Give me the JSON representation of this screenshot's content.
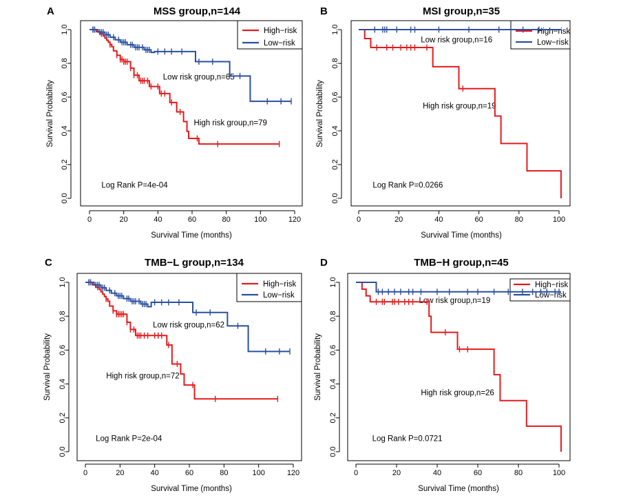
{
  "chart_data": [
    {
      "type": "line",
      "panel": "A",
      "title": "MSS group,n=144",
      "xlabel": "Survival Time (months)",
      "ylabel": "Survival Probability",
      "xlim": [
        0,
        120
      ],
      "ylim": [
        0,
        1
      ],
      "xticks": [
        "0",
        "20",
        "40",
        "60",
        "80",
        "100",
        "120"
      ],
      "yticks": [
        "0.0",
        "0.2",
        "0.4",
        "0.6",
        "0.8",
        "1.0"
      ],
      "legend": {
        "position": "top-right",
        "entries": [
          {
            "label": "High−risk",
            "color": "#E41A1C"
          },
          {
            "label": "Low−risk",
            "color": "#2A4FA0"
          }
        ]
      },
      "annotations": [
        {
          "text": "Low risk group,n=65",
          "x": 43,
          "y": 0.72
        },
        {
          "text": "High risk group,n=79",
          "x": 61,
          "y": 0.45
        },
        {
          "text": "Log Rank P=4e-04",
          "x": 7,
          "y": 0.08
        }
      ],
      "series": [
        {
          "name": "High-risk",
          "color": "#E41A1C",
          "x": [
            0,
            4,
            6,
            8,
            9,
            10,
            11,
            12,
            13,
            14,
            16,
            18,
            20,
            24,
            26,
            29,
            35,
            41,
            47,
            51,
            55,
            57,
            58,
            64,
            111
          ],
          "y": [
            1.0,
            0.988,
            0.975,
            0.963,
            0.95,
            0.937,
            0.925,
            0.912,
            0.899,
            0.874,
            0.848,
            0.823,
            0.81,
            0.772,
            0.73,
            0.697,
            0.663,
            0.621,
            0.568,
            0.512,
            0.455,
            0.397,
            0.355,
            0.322,
            0.322
          ],
          "censor": [
            2,
            3,
            7,
            12,
            16,
            18,
            19,
            20,
            21,
            22,
            24,
            26,
            28,
            30,
            31,
            32,
            34,
            36,
            40,
            42,
            44,
            48,
            53,
            63,
            75,
            111
          ]
        },
        {
          "name": "Low-risk",
          "color": "#2A4FA0",
          "x": [
            0,
            5,
            9,
            12,
            15,
            18,
            22,
            26,
            32,
            36,
            38,
            62,
            82,
            94,
            118
          ],
          "y": [
            1.0,
            0.985,
            0.97,
            0.955,
            0.94,
            0.925,
            0.91,
            0.895,
            0.88,
            0.865,
            0.87,
            0.81,
            0.725,
            0.575,
            0.575
          ],
          "censor": [
            2,
            3,
            6,
            7,
            8,
            10,
            11,
            14,
            17,
            19,
            20,
            21,
            24,
            25,
            27,
            28,
            29,
            31,
            33,
            34,
            35,
            40,
            44,
            48,
            54,
            64,
            72,
            88,
            104,
            112,
            118
          ]
        }
      ]
    },
    {
      "type": "line",
      "panel": "B",
      "title": "MSI group,n=35",
      "xlabel": "Survival Time (months)",
      "ylabel": "Survival Probability",
      "xlim": [
        0,
        100
      ],
      "ylim": [
        0,
        1
      ],
      "xticks": [
        "0",
        "20",
        "40",
        "60",
        "80",
        "100"
      ],
      "yticks": [
        "0.0",
        "0.2",
        "0.4",
        "0.6",
        "0.8",
        "1.0"
      ],
      "legend": {
        "position": "top-right",
        "entries": [
          {
            "label": "High−risk",
            "color": "#E41A1C"
          },
          {
            "label": "Low−risk",
            "color": "#2A4FA0"
          }
        ]
      },
      "annotations": [
        {
          "text": "Low risk group,n=16",
          "x": 31,
          "y": 0.94
        },
        {
          "text": "High risk group,n=19",
          "x": 32,
          "y": 0.55
        },
        {
          "text": "Log Rank P=0.0266",
          "x": 7,
          "y": 0.08
        }
      ],
      "series": [
        {
          "name": "High-risk",
          "color": "#E41A1C",
          "x": [
            0,
            3,
            6,
            37,
            50,
            68,
            71,
            84,
            101,
            101
          ],
          "y": [
            1.0,
            0.947,
            0.894,
            0.78,
            0.65,
            0.488,
            0.325,
            0.163,
            0.163,
            0.0
          ],
          "censor": [
            9,
            14,
            17,
            21,
            24,
            26,
            28,
            34,
            52
          ]
        },
        {
          "name": "Low-risk",
          "color": "#2A4FA0",
          "x": [
            0,
            101
          ],
          "y": [
            1.0,
            1.0
          ],
          "censor": [
            8,
            12,
            13,
            14,
            19,
            26,
            28,
            40,
            55,
            70,
            82,
            90
          ]
        }
      ]
    },
    {
      "type": "line",
      "panel": "C",
      "title": "TMB−L group,n=134",
      "xlabel": "Survival Time (months)",
      "ylabel": "Survival Probability",
      "xlim": [
        0,
        120
      ],
      "ylim": [
        0,
        1
      ],
      "xticks": [
        "0",
        "20",
        "40",
        "60",
        "80",
        "100",
        "120"
      ],
      "yticks": [
        "0.0",
        "0.2",
        "0.4",
        "0.6",
        "0.8",
        "1.0"
      ],
      "legend": {
        "position": "top-right",
        "entries": [
          {
            "label": "High−risk",
            "color": "#E41A1C"
          },
          {
            "label": "Low−risk",
            "color": "#2A4FA0"
          }
        ]
      },
      "annotations": [
        {
          "text": "Low risk group,n=62",
          "x": 39,
          "y": 0.75
        },
        {
          "text": "High risk group,n=72",
          "x": 12,
          "y": 0.45
        },
        {
          "text": "Log Rank P=2e-04",
          "x": 6,
          "y": 0.08
        }
      ],
      "series": [
        {
          "name": "High-risk",
          "color": "#E41A1C",
          "x": [
            0,
            4,
            6,
            8,
            9,
            10,
            11,
            12,
            13,
            14,
            16,
            18,
            19,
            24,
            26,
            29,
            47,
            50,
            55,
            57,
            63,
            111
          ],
          "y": [
            1.0,
            0.986,
            0.972,
            0.958,
            0.944,
            0.93,
            0.916,
            0.902,
            0.888,
            0.86,
            0.832,
            0.812,
            0.812,
            0.764,
            0.722,
            0.686,
            0.63,
            0.518,
            0.459,
            0.394,
            0.312,
            0.312
          ],
          "censor": [
            2,
            3,
            7,
            12,
            16,
            18,
            19,
            20,
            21,
            22,
            24,
            26,
            28,
            30,
            31,
            32,
            34,
            36,
            40,
            42,
            44,
            48,
            53,
            62,
            75,
            111
          ]
        },
        {
          "name": "Low-risk",
          "color": "#2A4FA0",
          "x": [
            0,
            5,
            9,
            12,
            15,
            18,
            22,
            26,
            32,
            36,
            38,
            62,
            82,
            94,
            118
          ],
          "y": [
            1.0,
            0.984,
            0.968,
            0.952,
            0.936,
            0.92,
            0.904,
            0.888,
            0.872,
            0.856,
            0.882,
            0.822,
            0.743,
            0.592,
            0.592
          ],
          "censor": [
            2,
            3,
            6,
            7,
            8,
            10,
            11,
            14,
            17,
            19,
            20,
            21,
            24,
            25,
            27,
            28,
            29,
            31,
            33,
            34,
            35,
            40,
            44,
            48,
            54,
            64,
            72,
            88,
            104,
            112,
            118
          ]
        }
      ]
    },
    {
      "type": "line",
      "panel": "D",
      "title": "TMB−H group,n=45",
      "xlabel": "Survival Time (months)",
      "ylabel": "Survival Probability",
      "xlim": [
        0,
        100
      ],
      "ylim": [
        0,
        1
      ],
      "xticks": [
        "0",
        "20",
        "40",
        "60",
        "80",
        "100"
      ],
      "yticks": [
        "0.0",
        "0.2",
        "0.4",
        "0.6",
        "0.8",
        "1.0"
      ],
      "legend": {
        "position": "top-right",
        "entries": [
          {
            "label": "High−risk",
            "color": "#E41A1C"
          },
          {
            "label": "Low−risk",
            "color": "#2A4FA0"
          }
        ]
      },
      "annotations": [
        {
          "text": "Low risk group,n=19",
          "x": 31,
          "y": 0.895
        },
        {
          "text": "High risk group,n=26",
          "x": 32,
          "y": 0.35
        },
        {
          "text": "Log Rank P=0.0721",
          "x": 8,
          "y": 0.08
        }
      ],
      "series": [
        {
          "name": "High-risk",
          "color": "#E41A1C",
          "x": [
            0,
            3,
            5,
            7,
            36,
            37,
            50,
            68,
            71,
            84,
            101,
            101
          ],
          "y": [
            1.0,
            0.96,
            0.92,
            0.885,
            0.8,
            0.705,
            0.605,
            0.455,
            0.302,
            0.151,
            0.151,
            0.0
          ],
          "censor": [
            10,
            13,
            14,
            18,
            19,
            21,
            24,
            26,
            28,
            35,
            44,
            51,
            55
          ]
        },
        {
          "name": "Low-risk",
          "color": "#2A4FA0",
          "x": [
            0,
            10,
            101
          ],
          "y": [
            1.0,
            0.944,
            0.944
          ],
          "censor": [
            11,
            13,
            16,
            19,
            22,
            26,
            28,
            32,
            40,
            46,
            55,
            60,
            68,
            75,
            82,
            87,
            91,
            94,
            98,
            100
          ]
        }
      ]
    }
  ]
}
